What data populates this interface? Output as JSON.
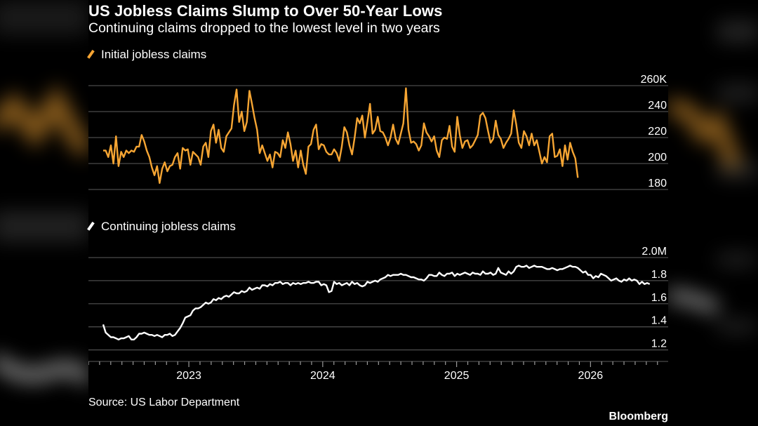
{
  "title": "US Jobless Claims Slump to Over 50-Year Lows",
  "subtitle": "Continuing claims dropped to the lowest level in two years",
  "source": "Source: US Labor Department",
  "brand": "Bloomberg",
  "colors": {
    "initial": "#f6a533",
    "continuing": "#ffffff",
    "grid": "#4a4a4a",
    "background": "#000000"
  },
  "chart_data": [
    {
      "type": "line",
      "name": "initial",
      "legend": "Initial jobless claims",
      "ylim": [
        180,
        260
      ],
      "yticks": [
        180,
        200,
        220,
        240,
        260
      ],
      "ytick_labels": [
        "180",
        "200",
        "220",
        "240",
        "260K"
      ],
      "unit": "thousands",
      "x_start": 2022.36,
      "x_step_weeks": 1,
      "values": [
        210,
        210,
        205,
        214,
        200,
        221,
        198,
        209,
        205,
        210,
        208,
        210,
        209,
        213,
        213,
        222,
        217,
        210,
        205,
        197,
        191,
        198,
        185,
        196,
        201,
        194,
        198,
        199,
        205,
        208,
        196,
        212,
        210,
        211,
        199,
        209,
        207,
        205,
        199,
        213,
        216,
        205,
        225,
        230,
        216,
        226,
        212,
        209,
        221,
        224,
        227,
        245,
        257,
        232,
        240,
        225,
        232,
        256,
        246,
        235,
        226,
        208,
        214,
        208,
        202,
        207,
        197,
        209,
        208,
        205,
        218,
        212,
        224,
        215,
        202,
        210,
        197,
        210,
        199,
        192,
        213,
        215,
        226,
        230,
        211,
        215,
        214,
        209,
        207,
        207,
        211,
        208,
        202,
        213,
        228,
        224,
        214,
        207,
        220,
        235,
        231,
        237,
        220,
        232,
        246,
        223,
        226,
        236,
        225,
        224,
        220,
        214,
        220,
        230,
        219,
        215,
        223,
        231,
        258,
        226,
        216,
        217,
        215,
        210,
        214,
        231,
        224,
        221,
        217,
        221,
        210,
        205,
        218,
        220,
        219,
        229,
        213,
        209,
        236,
        222,
        212,
        217,
        218,
        212,
        214,
        218,
        222,
        237,
        239,
        235,
        225,
        216,
        219,
        233,
        222,
        219,
        212,
        216,
        219,
        223,
        241,
        230,
        216,
        212,
        225,
        221,
        214,
        223,
        214,
        218,
        209,
        200,
        205,
        201,
        221,
        223,
        205,
        206,
        211,
        198,
        214,
        203,
        216,
        209,
        204,
        189
      ]
    },
    {
      "type": "line",
      "name": "continuing",
      "legend": "Continuing jobless claims",
      "ylim": [
        1.1,
        2.0
      ],
      "yticks": [
        1.2,
        1.4,
        1.6,
        1.8,
        2.0
      ],
      "ytick_labels": [
        "1.2",
        "1.4",
        "1.6",
        "1.8",
        "2.0M"
      ],
      "unit": "millions",
      "x_start": 2022.36,
      "x_step_weeks": 1,
      "values": [
        1.42,
        1.35,
        1.33,
        1.31,
        1.31,
        1.3,
        1.29,
        1.3,
        1.3,
        1.31,
        1.32,
        1.29,
        1.29,
        1.31,
        1.34,
        1.34,
        1.35,
        1.34,
        1.33,
        1.33,
        1.32,
        1.33,
        1.32,
        1.31,
        1.33,
        1.33,
        1.34,
        1.32,
        1.33,
        1.36,
        1.39,
        1.43,
        1.48,
        1.49,
        1.5,
        1.54,
        1.56,
        1.56,
        1.57,
        1.59,
        1.61,
        1.6,
        1.61,
        1.64,
        1.63,
        1.65,
        1.64,
        1.66,
        1.67,
        1.66,
        1.68,
        1.7,
        1.69,
        1.69,
        1.71,
        1.7,
        1.71,
        1.74,
        1.72,
        1.73,
        1.74,
        1.73,
        1.76,
        1.76,
        1.75,
        1.77,
        1.76,
        1.78,
        1.78,
        1.79,
        1.77,
        1.78,
        1.78,
        1.76,
        1.78,
        1.77,
        1.78,
        1.77,
        1.78,
        1.78,
        1.79,
        1.78,
        1.78,
        1.79,
        1.79,
        1.76,
        1.77,
        1.76,
        1.7,
        1.71,
        1.79,
        1.77,
        1.78,
        1.76,
        1.77,
        1.78,
        1.76,
        1.79,
        1.77,
        1.78,
        1.76,
        1.75,
        1.76,
        1.79,
        1.78,
        1.79,
        1.8,
        1.79,
        1.81,
        1.82,
        1.83,
        1.85,
        1.84,
        1.85,
        1.85,
        1.85,
        1.86,
        1.85,
        1.85,
        1.84,
        1.83,
        1.83,
        1.82,
        1.81,
        1.81,
        1.8,
        1.82,
        1.85,
        1.85,
        1.84,
        1.84,
        1.87,
        1.85,
        1.84,
        1.86,
        1.86,
        1.87,
        1.84,
        1.86,
        1.85,
        1.86,
        1.87,
        1.86,
        1.85,
        1.87,
        1.86,
        1.86,
        1.85,
        1.88,
        1.86,
        1.86,
        1.87,
        1.85,
        1.86,
        1.91,
        1.87,
        1.86,
        1.85,
        1.88,
        1.86,
        1.88,
        1.92,
        1.93,
        1.92,
        1.92,
        1.93,
        1.91,
        1.92,
        1.93,
        1.92,
        1.92,
        1.92,
        1.91,
        1.9,
        1.9,
        1.91,
        1.9,
        1.89,
        1.9,
        1.9,
        1.91,
        1.92,
        1.93,
        1.92,
        1.92,
        1.91,
        1.89,
        1.87,
        1.88,
        1.85,
        1.85,
        1.82,
        1.84,
        1.83,
        1.86,
        1.85,
        1.84,
        1.82,
        1.8,
        1.81,
        1.82,
        1.8,
        1.79,
        1.81,
        1.8,
        1.82,
        1.8,
        1.81,
        1.8,
        1.77,
        1.79,
        1.77,
        1.78,
        1.77
      ]
    }
  ],
  "x_axis": {
    "range": [
      2022.25,
      2026.58
    ],
    "labels": [
      "2023",
      "2024",
      "2025",
      "2026"
    ],
    "label_values": [
      2023,
      2024,
      2025,
      2026
    ]
  }
}
